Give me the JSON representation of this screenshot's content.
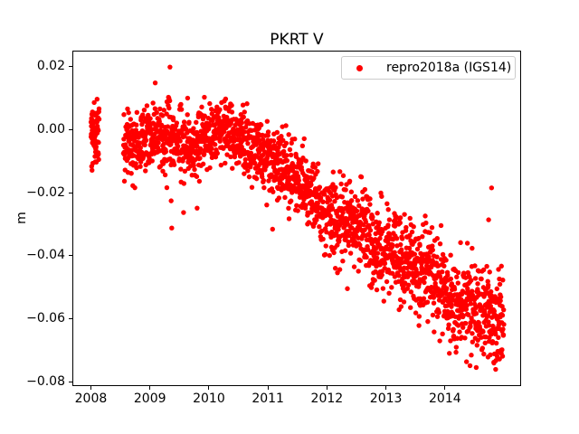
{
  "chart_data": {
    "type": "scatter",
    "title": "PKRT V",
    "xlabel": "",
    "ylabel": "m",
    "legend": {
      "position": "upper right",
      "entries": [
        "repro2018a (IGS14)"
      ]
    },
    "series": [
      {
        "name": "repro2018a (IGS14)",
        "color": "#ff0000",
        "marker": "dot"
      }
    ],
    "xlim": [
      2007.686,
      2015.275
    ],
    "ylim": [
      -0.0809,
      0.0249
    ],
    "grid": false,
    "xticks": {
      "values": [
        2008,
        2009,
        2010,
        2011,
        2012,
        2013,
        2014
      ],
      "labels": [
        "2008",
        "2009",
        "2010",
        "2011",
        "2012",
        "2013",
        "2014"
      ]
    },
    "yticks": {
      "values": [
        0.02,
        0.0,
        -0.02,
        -0.04,
        -0.06,
        -0.08
      ],
      "labels": [
        "0.02",
        "0.00",
        "−0.02",
        "−0.04",
        "−0.06",
        "−0.08"
      ]
    },
    "marker_radius_px": 2.7,
    "seed": 42,
    "segments": [
      {
        "start": 2008.0,
        "end": 2008.14,
        "n": 65
      },
      {
        "start": 2008.55,
        "end": 2015.0,
        "n": 2150
      }
    ],
    "trend_anchors": [
      [
        2008.0,
        -0.0015
      ],
      [
        2008.15,
        -0.0015
      ],
      [
        2008.55,
        -0.005
      ],
      [
        2008.85,
        -0.0045
      ],
      [
        2009.1,
        -0.002
      ],
      [
        2009.45,
        -0.0035
      ],
      [
        2009.75,
        -0.0055
      ],
      [
        2010.0,
        -0.0028
      ],
      [
        2010.15,
        -0.0005
      ],
      [
        2010.4,
        -0.0012
      ],
      [
        2010.7,
        -0.006
      ],
      [
        2011.0,
        -0.009
      ],
      [
        2011.5,
        -0.0155
      ],
      [
        2011.8,
        -0.022
      ],
      [
        2012.0,
        -0.0275
      ],
      [
        2012.35,
        -0.029
      ],
      [
        2012.7,
        -0.0325
      ],
      [
        2012.95,
        -0.0375
      ],
      [
        2013.2,
        -0.0395
      ],
      [
        2013.5,
        -0.0435
      ],
      [
        2013.85,
        -0.047
      ],
      [
        2014.1,
        -0.0535
      ],
      [
        2014.4,
        -0.056
      ],
      [
        2014.7,
        -0.059
      ],
      [
        2015.0,
        -0.0615
      ]
    ],
    "sigma_anchors": [
      [
        2008.0,
        0.005
      ],
      [
        2008.6,
        0.0052
      ],
      [
        2009.3,
        0.0058
      ],
      [
        2010.2,
        0.0048
      ],
      [
        2011.0,
        0.0052
      ],
      [
        2012.0,
        0.0058
      ],
      [
        2013.0,
        0.0062
      ],
      [
        2014.0,
        0.007
      ],
      [
        2015.0,
        0.0072
      ]
    ],
    "outliers": [
      [
        2009.09,
        0.0147
      ],
      [
        2009.34,
        0.0197
      ],
      [
        2009.36,
        -0.0226
      ],
      [
        2009.37,
        -0.0312
      ],
      [
        2009.57,
        -0.0263
      ],
      [
        2009.8,
        -0.0249
      ],
      [
        2010.98,
        -0.0239
      ],
      [
        2013.2,
        -0.0296
      ],
      [
        2013.63,
        -0.0301
      ],
      [
        2014.38,
        -0.036
      ],
      [
        2014.46,
        -0.0376
      ],
      [
        2014.74,
        -0.0286
      ],
      [
        2014.79,
        -0.0185
      ],
      [
        2014.53,
        -0.0753
      ],
      [
        2014.73,
        -0.072
      ],
      [
        2014.77,
        -0.0713
      ],
      [
        2014.83,
        -0.0739
      ]
    ]
  }
}
